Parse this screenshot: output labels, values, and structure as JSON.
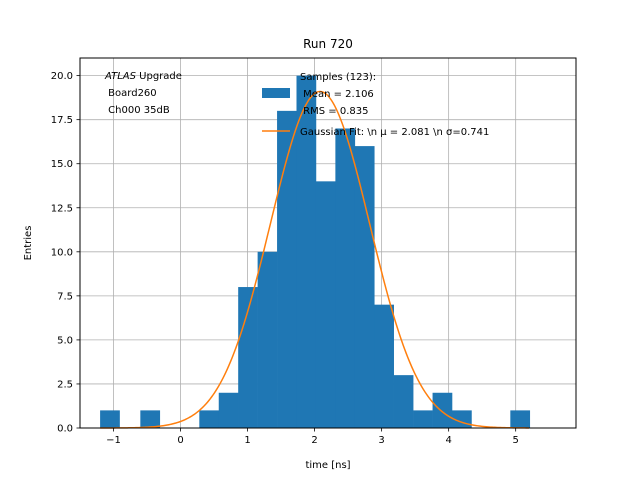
{
  "chart_data": {
    "type": "bar",
    "title": "Run 720",
    "xlabel": "time [ns]",
    "ylabel": "Entries",
    "xlim": [
      -1.5,
      5.9
    ],
    "ylim": [
      0,
      21
    ],
    "grid": true,
    "legend_placement": "top-center",
    "x_ticks": [
      -1,
      0,
      1,
      2,
      3,
      4,
      5
    ],
    "x_tick_labels": [
      "−1",
      "0",
      "1",
      "2",
      "3",
      "4",
      "5"
    ],
    "y_ticks": [
      0,
      2.5,
      5,
      7.5,
      10,
      12.5,
      15,
      17.5,
      20
    ],
    "y_tick_labels": [
      "0.0",
      "2.5",
      "5.0",
      "7.5",
      "10.0",
      "12.5",
      "15.0",
      "17.5",
      "20.0"
    ],
    "annotation": {
      "line1_italic": "ATLAS",
      "line1_rest": " Upgrade",
      "line2": " Board260",
      "line3": " Ch000 35dB"
    },
    "series": [
      {
        "kind": "histogram",
        "color": "#1f77b4",
        "legend_lines": [
          "Samples (123):",
          " Mean = 2.106",
          " RMS = 0.835"
        ],
        "bin_width": 0.29,
        "bins": [
          {
            "left": -1.2,
            "count": 1
          },
          {
            "left": -0.6,
            "count": 1
          },
          {
            "left": 0.28,
            "count": 1
          },
          {
            "left": 0.57,
            "count": 2
          },
          {
            "left": 0.86,
            "count": 8
          },
          {
            "left": 1.15,
            "count": 10
          },
          {
            "left": 1.44,
            "count": 18
          },
          {
            "left": 1.73,
            "count": 20
          },
          {
            "left": 2.02,
            "count": 14
          },
          {
            "left": 2.31,
            "count": 17
          },
          {
            "left": 2.6,
            "count": 16
          },
          {
            "left": 2.89,
            "count": 7
          },
          {
            "left": 3.18,
            "count": 3
          },
          {
            "left": 3.47,
            "count": 1
          },
          {
            "left": 3.76,
            "count": 2
          },
          {
            "left": 4.05,
            "count": 1
          },
          {
            "left": 4.92,
            "count": 1
          }
        ]
      },
      {
        "kind": "gaussian",
        "color": "#ff7f0e",
        "legend_label": "Gaussian Fit: \\n μ = 2.081 \\n σ=0.741",
        "amplitude": 19.1,
        "mu": 2.081,
        "sigma": 0.741,
        "x_range": [
          -1.2,
          5.2
        ]
      }
    ]
  }
}
